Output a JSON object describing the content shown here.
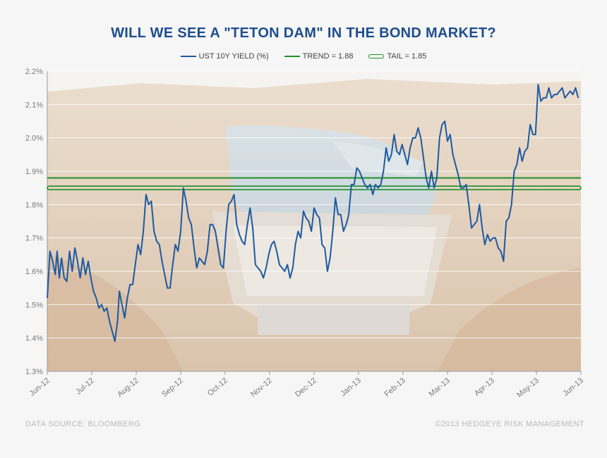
{
  "chart_data": {
    "type": "line",
    "title": "WILL WE SEE A \"TETON DAM\"  IN THE BOND  MARKET?",
    "legend": [
      {
        "label": "UST 10Y YIELD (%)",
        "color": "#1f5aa0"
      },
      {
        "label": "TREND = 1.88",
        "color": "#1f8f2a"
      },
      {
        "label": "TAIL = 1.85",
        "color": "#1f8f2a"
      }
    ],
    "ylim": [
      1.3,
      2.2
    ],
    "yticks": [
      1.3,
      1.4,
      1.5,
      1.6,
      1.7,
      1.8,
      1.9,
      2.0,
      2.1,
      2.2
    ],
    "ytick_labels": [
      "1.3%",
      "1.4%",
      "1.5%",
      "1.6%",
      "1.7%",
      "1.8%",
      "1.9%",
      "2.0%",
      "2.1%",
      "2.2%"
    ],
    "xlim": [
      0,
      12
    ],
    "xticks": [
      0,
      1,
      2,
      3,
      4,
      5,
      6,
      7,
      8,
      9,
      10,
      11,
      12
    ],
    "xtick_labels": [
      "Jun-12",
      "Jul-12",
      "Aug-12",
      "Sep-12",
      "Oct-12",
      "Nov-12",
      "Dec-12",
      "Jan-13",
      "Feb-13",
      "Mar-13",
      "Apr-13",
      "May-13",
      "Jun-13"
    ],
    "trend": 1.88,
    "tail": 1.85,
    "series": [
      {
        "name": "UST 10Y YIELD (%)",
        "color": "#1f5aa0",
        "values": [
          [
            0.0,
            1.52
          ],
          [
            0.06,
            1.66
          ],
          [
            0.12,
            1.63
          ],
          [
            0.18,
            1.59
          ],
          [
            0.22,
            1.66
          ],
          [
            0.27,
            1.58
          ],
          [
            0.32,
            1.64
          ],
          [
            0.38,
            1.58
          ],
          [
            0.44,
            1.57
          ],
          [
            0.5,
            1.66
          ],
          [
            0.56,
            1.6
          ],
          [
            0.62,
            1.67
          ],
          [
            0.68,
            1.63
          ],
          [
            0.74,
            1.58
          ],
          [
            0.8,
            1.64
          ],
          [
            0.86,
            1.59
          ],
          [
            0.92,
            1.63
          ],
          [
            0.98,
            1.58
          ],
          [
            1.04,
            1.54
          ],
          [
            1.1,
            1.52
          ],
          [
            1.16,
            1.49
          ],
          [
            1.22,
            1.5
          ],
          [
            1.28,
            1.48
          ],
          [
            1.34,
            1.49
          ],
          [
            1.4,
            1.45
          ],
          [
            1.46,
            1.42
          ],
          [
            1.52,
            1.39
          ],
          [
            1.58,
            1.45
          ],
          [
            1.62,
            1.54
          ],
          [
            1.68,
            1.5
          ],
          [
            1.74,
            1.46
          ],
          [
            1.8,
            1.52
          ],
          [
            1.86,
            1.56
          ],
          [
            1.92,
            1.56
          ],
          [
            1.98,
            1.62
          ],
          [
            2.04,
            1.68
          ],
          [
            2.1,
            1.65
          ],
          [
            2.16,
            1.72
          ],
          [
            2.22,
            1.83
          ],
          [
            2.28,
            1.8
          ],
          [
            2.34,
            1.81
          ],
          [
            2.4,
            1.72
          ],
          [
            2.46,
            1.69
          ],
          [
            2.52,
            1.68
          ],
          [
            2.58,
            1.63
          ],
          [
            2.64,
            1.59
          ],
          [
            2.7,
            1.55
          ],
          [
            2.76,
            1.55
          ],
          [
            2.82,
            1.62
          ],
          [
            2.88,
            1.68
          ],
          [
            2.94,
            1.66
          ],
          [
            3.0,
            1.72
          ],
          [
            3.06,
            1.85
          ],
          [
            3.12,
            1.81
          ],
          [
            3.18,
            1.76
          ],
          [
            3.24,
            1.74
          ],
          [
            3.3,
            1.67
          ],
          [
            3.36,
            1.61
          ],
          [
            3.42,
            1.64
          ],
          [
            3.48,
            1.63
          ],
          [
            3.54,
            1.62
          ],
          [
            3.6,
            1.66
          ],
          [
            3.66,
            1.74
          ],
          [
            3.72,
            1.74
          ],
          [
            3.78,
            1.72
          ],
          [
            3.84,
            1.67
          ],
          [
            3.9,
            1.62
          ],
          [
            3.96,
            1.61
          ],
          [
            4.02,
            1.72
          ],
          [
            4.08,
            1.8
          ],
          [
            4.14,
            1.81
          ],
          [
            4.2,
            1.83
          ],
          [
            4.26,
            1.74
          ],
          [
            4.32,
            1.71
          ],
          [
            4.38,
            1.69
          ],
          [
            4.44,
            1.68
          ],
          [
            4.5,
            1.74
          ],
          [
            4.56,
            1.79
          ],
          [
            4.62,
            1.73
          ],
          [
            4.68,
            1.62
          ],
          [
            4.74,
            1.61
          ],
          [
            4.8,
            1.6
          ],
          [
            4.86,
            1.58
          ],
          [
            4.92,
            1.61
          ],
          [
            4.98,
            1.65
          ],
          [
            5.04,
            1.68
          ],
          [
            5.1,
            1.69
          ],
          [
            5.16,
            1.66
          ],
          [
            5.22,
            1.62
          ],
          [
            5.28,
            1.61
          ],
          [
            5.34,
            1.6
          ],
          [
            5.4,
            1.62
          ],
          [
            5.46,
            1.58
          ],
          [
            5.52,
            1.61
          ],
          [
            5.58,
            1.68
          ],
          [
            5.64,
            1.72
          ],
          [
            5.7,
            1.7
          ],
          [
            5.76,
            1.78
          ],
          [
            5.82,
            1.76
          ],
          [
            5.88,
            1.75
          ],
          [
            5.94,
            1.72
          ],
          [
            6.0,
            1.79
          ],
          [
            6.06,
            1.77
          ],
          [
            6.12,
            1.76
          ],
          [
            6.18,
            1.68
          ],
          [
            6.24,
            1.67
          ],
          [
            6.3,
            1.6
          ],
          [
            6.36,
            1.64
          ],
          [
            6.42,
            1.72
          ],
          [
            6.48,
            1.82
          ],
          [
            6.54,
            1.77
          ],
          [
            6.6,
            1.77
          ],
          [
            6.66,
            1.72
          ],
          [
            6.72,
            1.74
          ],
          [
            6.78,
            1.77
          ],
          [
            6.84,
            1.86
          ],
          [
            6.9,
            1.86
          ],
          [
            6.96,
            1.91
          ],
          [
            7.02,
            1.9
          ],
          [
            7.08,
            1.88
          ],
          [
            7.14,
            1.86
          ],
          [
            7.2,
            1.85
          ],
          [
            7.26,
            1.86
          ],
          [
            7.32,
            1.83
          ],
          [
            7.38,
            1.86
          ],
          [
            7.44,
            1.85
          ],
          [
            7.5,
            1.86
          ],
          [
            7.56,
            1.9
          ],
          [
            7.62,
            1.97
          ],
          [
            7.68,
            1.93
          ],
          [
            7.74,
            1.95
          ],
          [
            7.8,
            2.01
          ],
          [
            7.86,
            1.96
          ],
          [
            7.92,
            1.95
          ],
          [
            7.98,
            1.98
          ],
          [
            8.04,
            1.95
          ],
          [
            8.1,
            1.92
          ],
          [
            8.16,
            1.97
          ],
          [
            8.22,
            2.0
          ],
          [
            8.28,
            2.0
          ],
          [
            8.34,
            2.03
          ],
          [
            8.4,
            2.0
          ],
          [
            8.46,
            1.94
          ],
          [
            8.52,
            1.88
          ],
          [
            8.58,
            1.85
          ],
          [
            8.64,
            1.9
          ],
          [
            8.7,
            1.85
          ],
          [
            8.76,
            1.88
          ],
          [
            8.82,
            2.0
          ],
          [
            8.88,
            2.04
          ],
          [
            8.94,
            2.05
          ],
          [
            9.0,
            1.99
          ],
          [
            9.06,
            2.01
          ],
          [
            9.12,
            1.95
          ],
          [
            9.18,
            1.92
          ],
          [
            9.24,
            1.89
          ],
          [
            9.3,
            1.85
          ],
          [
            9.36,
            1.85
          ],
          [
            9.42,
            1.86
          ],
          [
            9.48,
            1.8
          ],
          [
            9.54,
            1.73
          ],
          [
            9.6,
            1.74
          ],
          [
            9.66,
            1.75
          ],
          [
            9.72,
            1.8
          ],
          [
            9.78,
            1.73
          ],
          [
            9.84,
            1.68
          ],
          [
            9.9,
            1.71
          ],
          [
            9.96,
            1.69
          ],
          [
            10.02,
            1.7
          ],
          [
            10.08,
            1.7
          ],
          [
            10.14,
            1.67
          ],
          [
            10.2,
            1.66
          ],
          [
            10.26,
            1.63
          ],
          [
            10.32,
            1.75
          ],
          [
            10.38,
            1.76
          ],
          [
            10.44,
            1.8
          ],
          [
            10.5,
            1.9
          ],
          [
            10.56,
            1.92
          ],
          [
            10.62,
            1.97
          ],
          [
            10.68,
            1.93
          ],
          [
            10.74,
            1.96
          ],
          [
            10.8,
            1.97
          ],
          [
            10.86,
            2.04
          ],
          [
            10.92,
            2.01
          ],
          [
            10.98,
            2.01
          ],
          [
            11.04,
            2.16
          ],
          [
            11.1,
            2.11
          ],
          [
            11.16,
            2.12
          ],
          [
            11.22,
            2.12
          ],
          [
            11.28,
            2.15
          ],
          [
            11.34,
            2.12
          ],
          [
            11.4,
            2.13
          ],
          [
            11.46,
            2.13
          ],
          [
            11.52,
            2.14
          ],
          [
            11.58,
            2.15
          ],
          [
            11.64,
            2.12
          ],
          [
            11.7,
            2.13
          ],
          [
            11.76,
            2.14
          ],
          [
            11.82,
            2.13
          ],
          [
            11.88,
            2.15
          ],
          [
            11.94,
            2.12
          ]
        ]
      }
    ]
  },
  "footer": {
    "source": "DATA SOURCE:  BLOOMBERG",
    "copyright": "©2013 HEDGEYE  RISK MANAGEMENT"
  },
  "colors": {
    "title": "#1f4e8c",
    "yield": "#1f5aa0",
    "trend": "#1f8f2a",
    "tail": "#1f8f2a"
  }
}
